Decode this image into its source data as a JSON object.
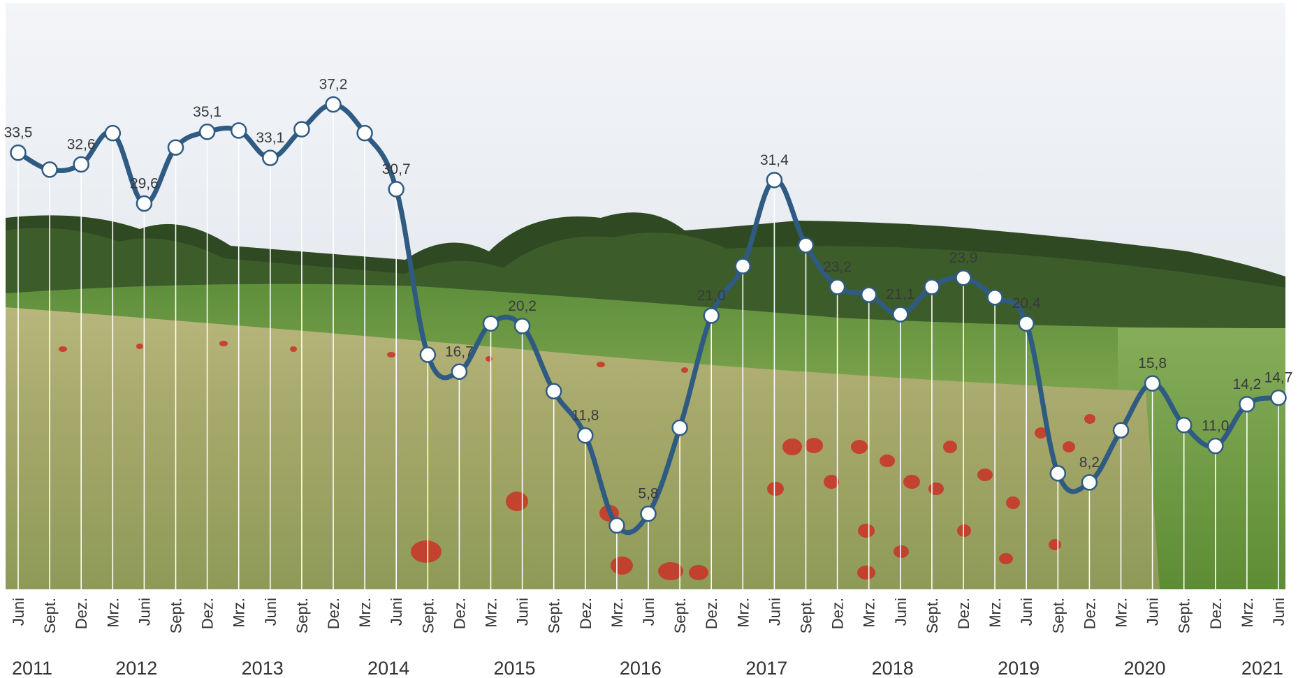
{
  "chart_data": {
    "type": "line",
    "title": "",
    "xlabel": "",
    "ylabel": "",
    "ylim": [
      0,
      45
    ],
    "background": "photo-of-barley-field-with-red-poppies-and-forest",
    "colors": {
      "line": "#2f5b82",
      "marker_fill": "#ffffff",
      "marker_stroke": "#2f5b82",
      "gridline": "#ffffff"
    },
    "categories": [
      "Juni",
      "Sept.",
      "Dez.",
      "Mrz.",
      "Juni",
      "Sept.",
      "Dez.",
      "Mrz.",
      "Juni",
      "Sept.",
      "Dez.",
      "Mrz.",
      "Juni",
      "Sept.",
      "Dez.",
      "Mrz.",
      "Juni",
      "Sept.",
      "Dez.",
      "Mrz.",
      "Juni",
      "Sept.",
      "Dez.",
      "Mrz.",
      "Juni",
      "Sept.",
      "Dez.",
      "Mrz.",
      "Juni",
      "Sept.",
      "Dez.",
      "Mrz.",
      "Juni",
      "Sept.",
      "Dez.",
      "Mrz.",
      "Juni",
      "Sept.",
      "Dez.",
      "Mrz.",
      "Juni"
    ],
    "years": [
      {
        "label": "2011",
        "from": 0,
        "to": 2
      },
      {
        "label": "2012",
        "from": 3,
        "to": 6
      },
      {
        "label": "2013",
        "from": 7,
        "to": 10
      },
      {
        "label": "2014",
        "from": 11,
        "to": 14
      },
      {
        "label": "2015",
        "from": 15,
        "to": 18
      },
      {
        "label": "2016",
        "from": 19,
        "to": 22
      },
      {
        "label": "2017",
        "from": 23,
        "to": 26
      },
      {
        "label": "2018",
        "from": 27,
        "to": 30
      },
      {
        "label": "2019",
        "from": 31,
        "to": 34
      },
      {
        "label": "2020",
        "from": 35,
        "to": 38
      },
      {
        "label": "2021",
        "from": 39,
        "to": 40
      }
    ],
    "series": [
      {
        "values": [
          33.5,
          32.2,
          32.6,
          35.0,
          29.6,
          33.9,
          35.1,
          35.2,
          33.1,
          35.3,
          37.2,
          35.0,
          30.7,
          18.0,
          16.7,
          20.4,
          20.2,
          15.2,
          11.8,
          4.9,
          5.8,
          12.4,
          21.0,
          24.8,
          31.4,
          26.4,
          23.2,
          22.6,
          21.1,
          23.2,
          23.9,
          22.4,
          20.4,
          8.9,
          8.2,
          12.2,
          15.8,
          12.6,
          11.0,
          14.2,
          14.7
        ]
      }
    ],
    "data_labels": [
      {
        "index": 0,
        "text": "33,5"
      },
      {
        "index": 2,
        "text": "32,6"
      },
      {
        "index": 4,
        "text": "29,6"
      },
      {
        "index": 6,
        "text": "35,1"
      },
      {
        "index": 8,
        "text": "33,1"
      },
      {
        "index": 10,
        "text": "37,2"
      },
      {
        "index": 12,
        "text": "30,7"
      },
      {
        "index": 14,
        "text": "16,7"
      },
      {
        "index": 16,
        "text": "20,2"
      },
      {
        "index": 18,
        "text": "11,8"
      },
      {
        "index": 20,
        "text": "5,8"
      },
      {
        "index": 22,
        "text": "21,0"
      },
      {
        "index": 24,
        "text": "31,4"
      },
      {
        "index": 26,
        "text": "23,2"
      },
      {
        "index": 28,
        "text": "21,1"
      },
      {
        "index": 30,
        "text": "23,9"
      },
      {
        "index": 32,
        "text": "20,4"
      },
      {
        "index": 34,
        "text": "8,2"
      },
      {
        "index": 36,
        "text": "15,8"
      },
      {
        "index": 38,
        "text": "11,0"
      },
      {
        "index": 39,
        "text": "14,2"
      },
      {
        "index": 40,
        "text": "14,7"
      }
    ]
  }
}
